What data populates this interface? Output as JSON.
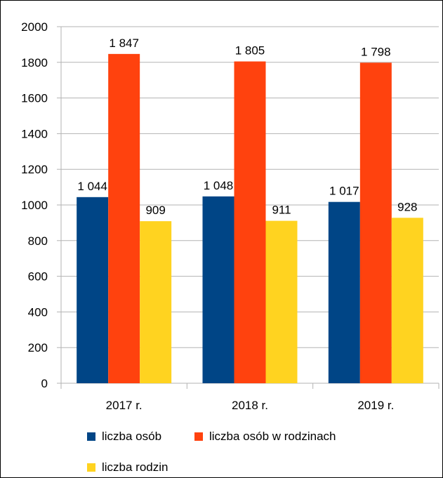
{
  "chart_data": {
    "type": "bar",
    "categories": [
      "2017 r.",
      "2018 r.",
      "2019 r."
    ],
    "series": [
      {
        "name": "liczba osób",
        "values": [
          1044,
          1048,
          1017
        ],
        "labels": [
          "1 044",
          "1 048",
          "1 017"
        ],
        "color": "#004586"
      },
      {
        "name": "liczba osób w rodzinach",
        "values": [
          1847,
          1805,
          1798
        ],
        "labels": [
          "1 847",
          "1 805",
          "1 798"
        ],
        "color": "#ff420e"
      },
      {
        "name": "liczba rodzin",
        "values": [
          909,
          911,
          928
        ],
        "labels": [
          "909",
          "911",
          "928"
        ],
        "color": "#ffd320"
      }
    ],
    "ylim": [
      0,
      2000
    ],
    "yticks": [
      "0",
      "200",
      "400",
      "600",
      "800",
      "1000",
      "1200",
      "1400",
      "1600",
      "1800",
      "2000"
    ],
    "grid": true,
    "legend_position": "bottom",
    "title": "",
    "xlabel": "",
    "ylabel": ""
  }
}
